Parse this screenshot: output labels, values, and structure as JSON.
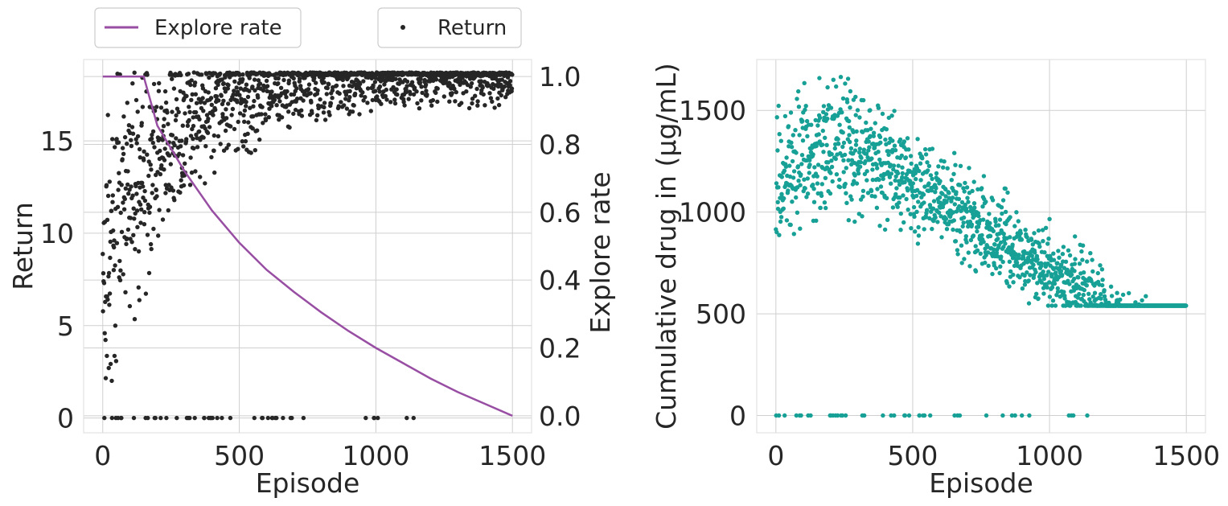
{
  "colors": {
    "explore_line": "#984ea3",
    "return_points": "#262626",
    "drug_points": "#17a096",
    "grid": "#cfcfcf",
    "frame": "#dddddd",
    "legend_border": "#cccccc"
  },
  "chart_data": [
    {
      "type": "scatter",
      "xlabel": "Episode",
      "ylabel": "Return",
      "y2label": "Explore rate",
      "xlim": [
        -70,
        1570
      ],
      "ylim": [
        -0.8,
        19.4
      ],
      "y2lim": [
        -0.05,
        1.05
      ],
      "xticks": [
        0,
        500,
        1000,
        1500
      ],
      "yticks": [
        0,
        5,
        10,
        15
      ],
      "y2ticks": [
        0.0,
        0.2,
        0.4,
        0.6,
        0.8,
        1.0
      ],
      "grid": true,
      "legend": [
        {
          "label": "Explore rate",
          "kind": "line",
          "placement": "above-left"
        },
        {
          "label": "Return",
          "kind": "marker",
          "placement": "above-right"
        }
      ],
      "series": [
        {
          "name": "Explore rate",
          "kind": "line",
          "axis": "right",
          "x": [
            0,
            150,
            200,
            300,
            400,
            500,
            600,
            700,
            800,
            900,
            1000,
            1100,
            1200,
            1300,
            1400,
            1500
          ],
          "values": [
            1.0,
            1.0,
            0.855,
            0.72,
            0.605,
            0.51,
            0.43,
            0.365,
            0.305,
            0.25,
            0.2,
            0.155,
            0.11,
            0.07,
            0.035,
            0.0
          ]
        },
        {
          "name": "Return",
          "kind": "scatter",
          "axis": "left",
          "episodes": 1500,
          "max_return": 18.7,
          "failed_episodes_return": 0,
          "failure_last_episode": 1210
        }
      ]
    },
    {
      "type": "scatter",
      "xlabel": "Episode",
      "ylabel": "Cumulative drug in (μg/mL)",
      "xlim": [
        -70,
        1570
      ],
      "ylim": [
        -85,
        1750
      ],
      "xticks": [
        0,
        500,
        1000,
        1500
      ],
      "yticks": [
        0,
        500,
        1000,
        1500
      ],
      "grid": true,
      "series": [
        {
          "kind": "scatter",
          "episodes": 1500,
          "peak_value": 1670,
          "floor_value": 540,
          "failed_episodes_value": 0,
          "failure_last_episode": 1210
        }
      ]
    }
  ]
}
